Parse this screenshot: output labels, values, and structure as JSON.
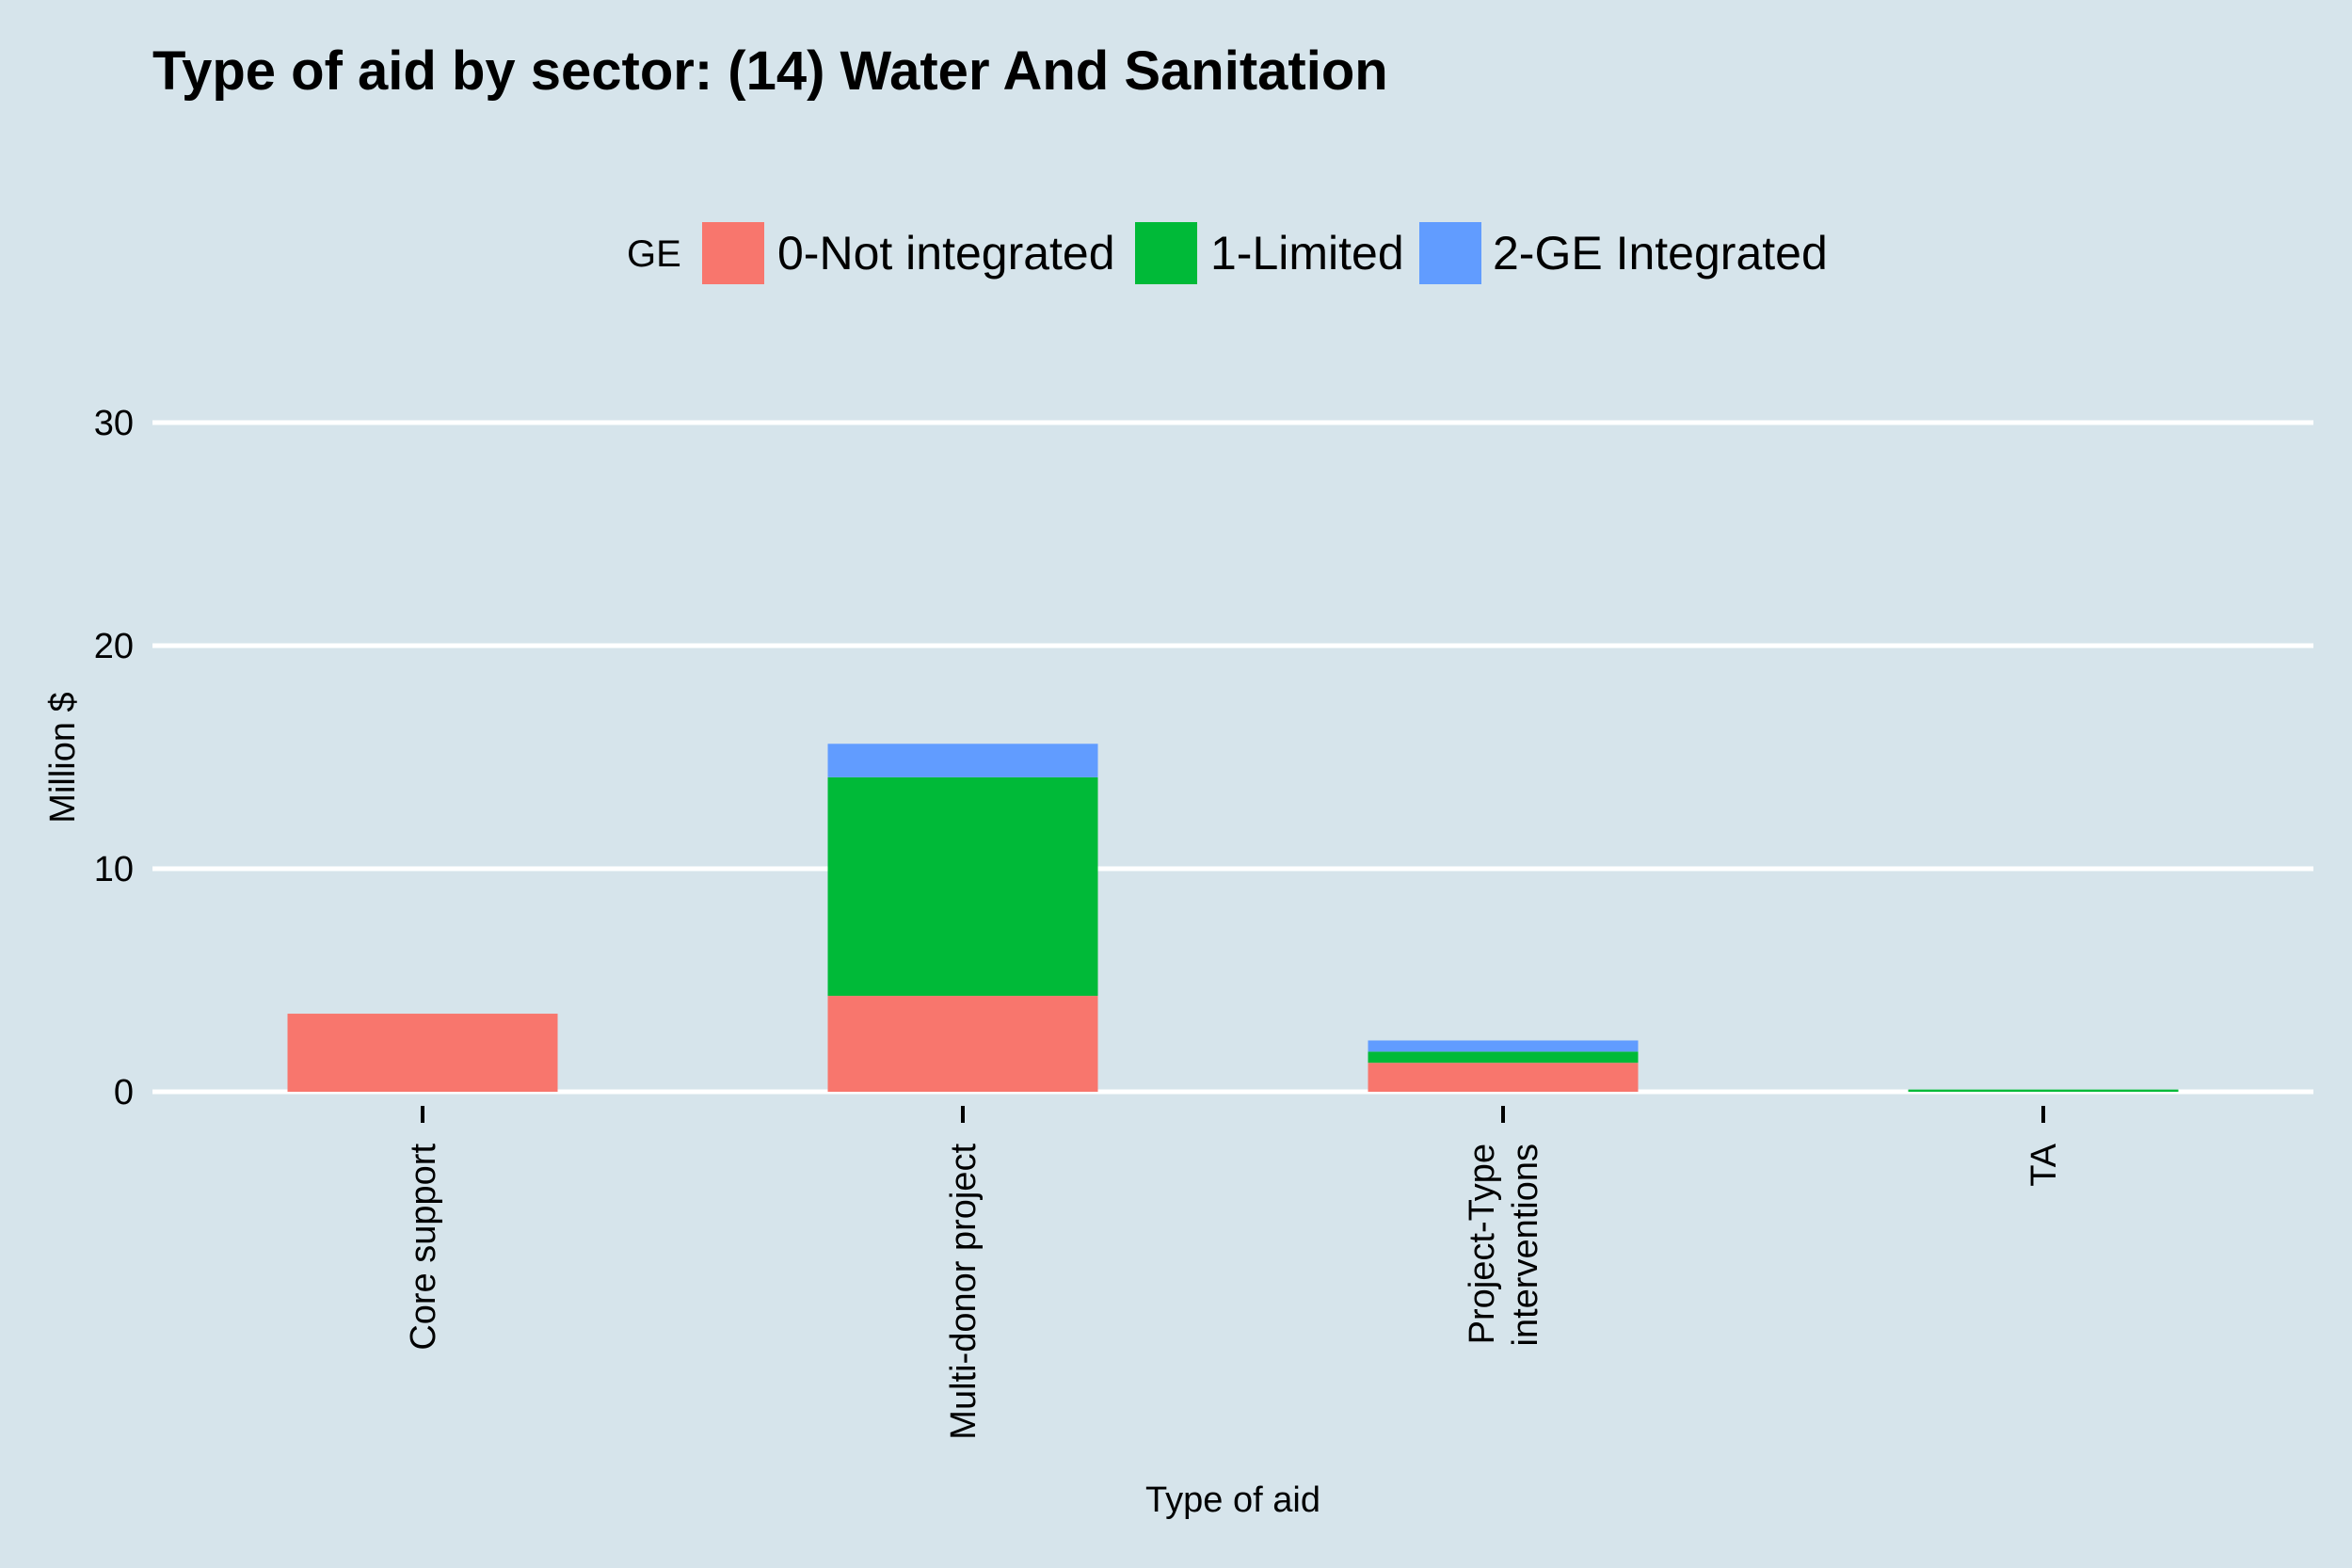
{
  "chart_data": {
    "type": "bar",
    "stacked": true,
    "title": "Type of aid by sector:  (14) Water And Sanitation",
    "xlabel": "Type of aid",
    "ylabel": "Million $",
    "ylim": [
      0,
      30
    ],
    "yticks": [
      0,
      10,
      20,
      30
    ],
    "grid": true,
    "legend": {
      "title": "GE",
      "position": "top"
    },
    "categories": [
      [
        "Core support"
      ],
      [
        "Multi-donor project"
      ],
      [
        "Project-Type",
        "interventions"
      ],
      [
        "TA"
      ]
    ],
    "series": [
      {
        "name": "0-Not integrated",
        "color": "#f8766d",
        "values": [
          3.5,
          4.3,
          1.3,
          0.0
        ]
      },
      {
        "name": "1-Limited",
        "color": "#00ba38",
        "values": [
          0.0,
          9.8,
          0.5,
          0.1
        ]
      },
      {
        "name": "2-GE Integrated",
        "color": "#619cff",
        "values": [
          0.0,
          1.5,
          0.5,
          0.0
        ]
      }
    ],
    "colors": {
      "background": "#d6e4eb",
      "grid": "#ffffff"
    }
  }
}
